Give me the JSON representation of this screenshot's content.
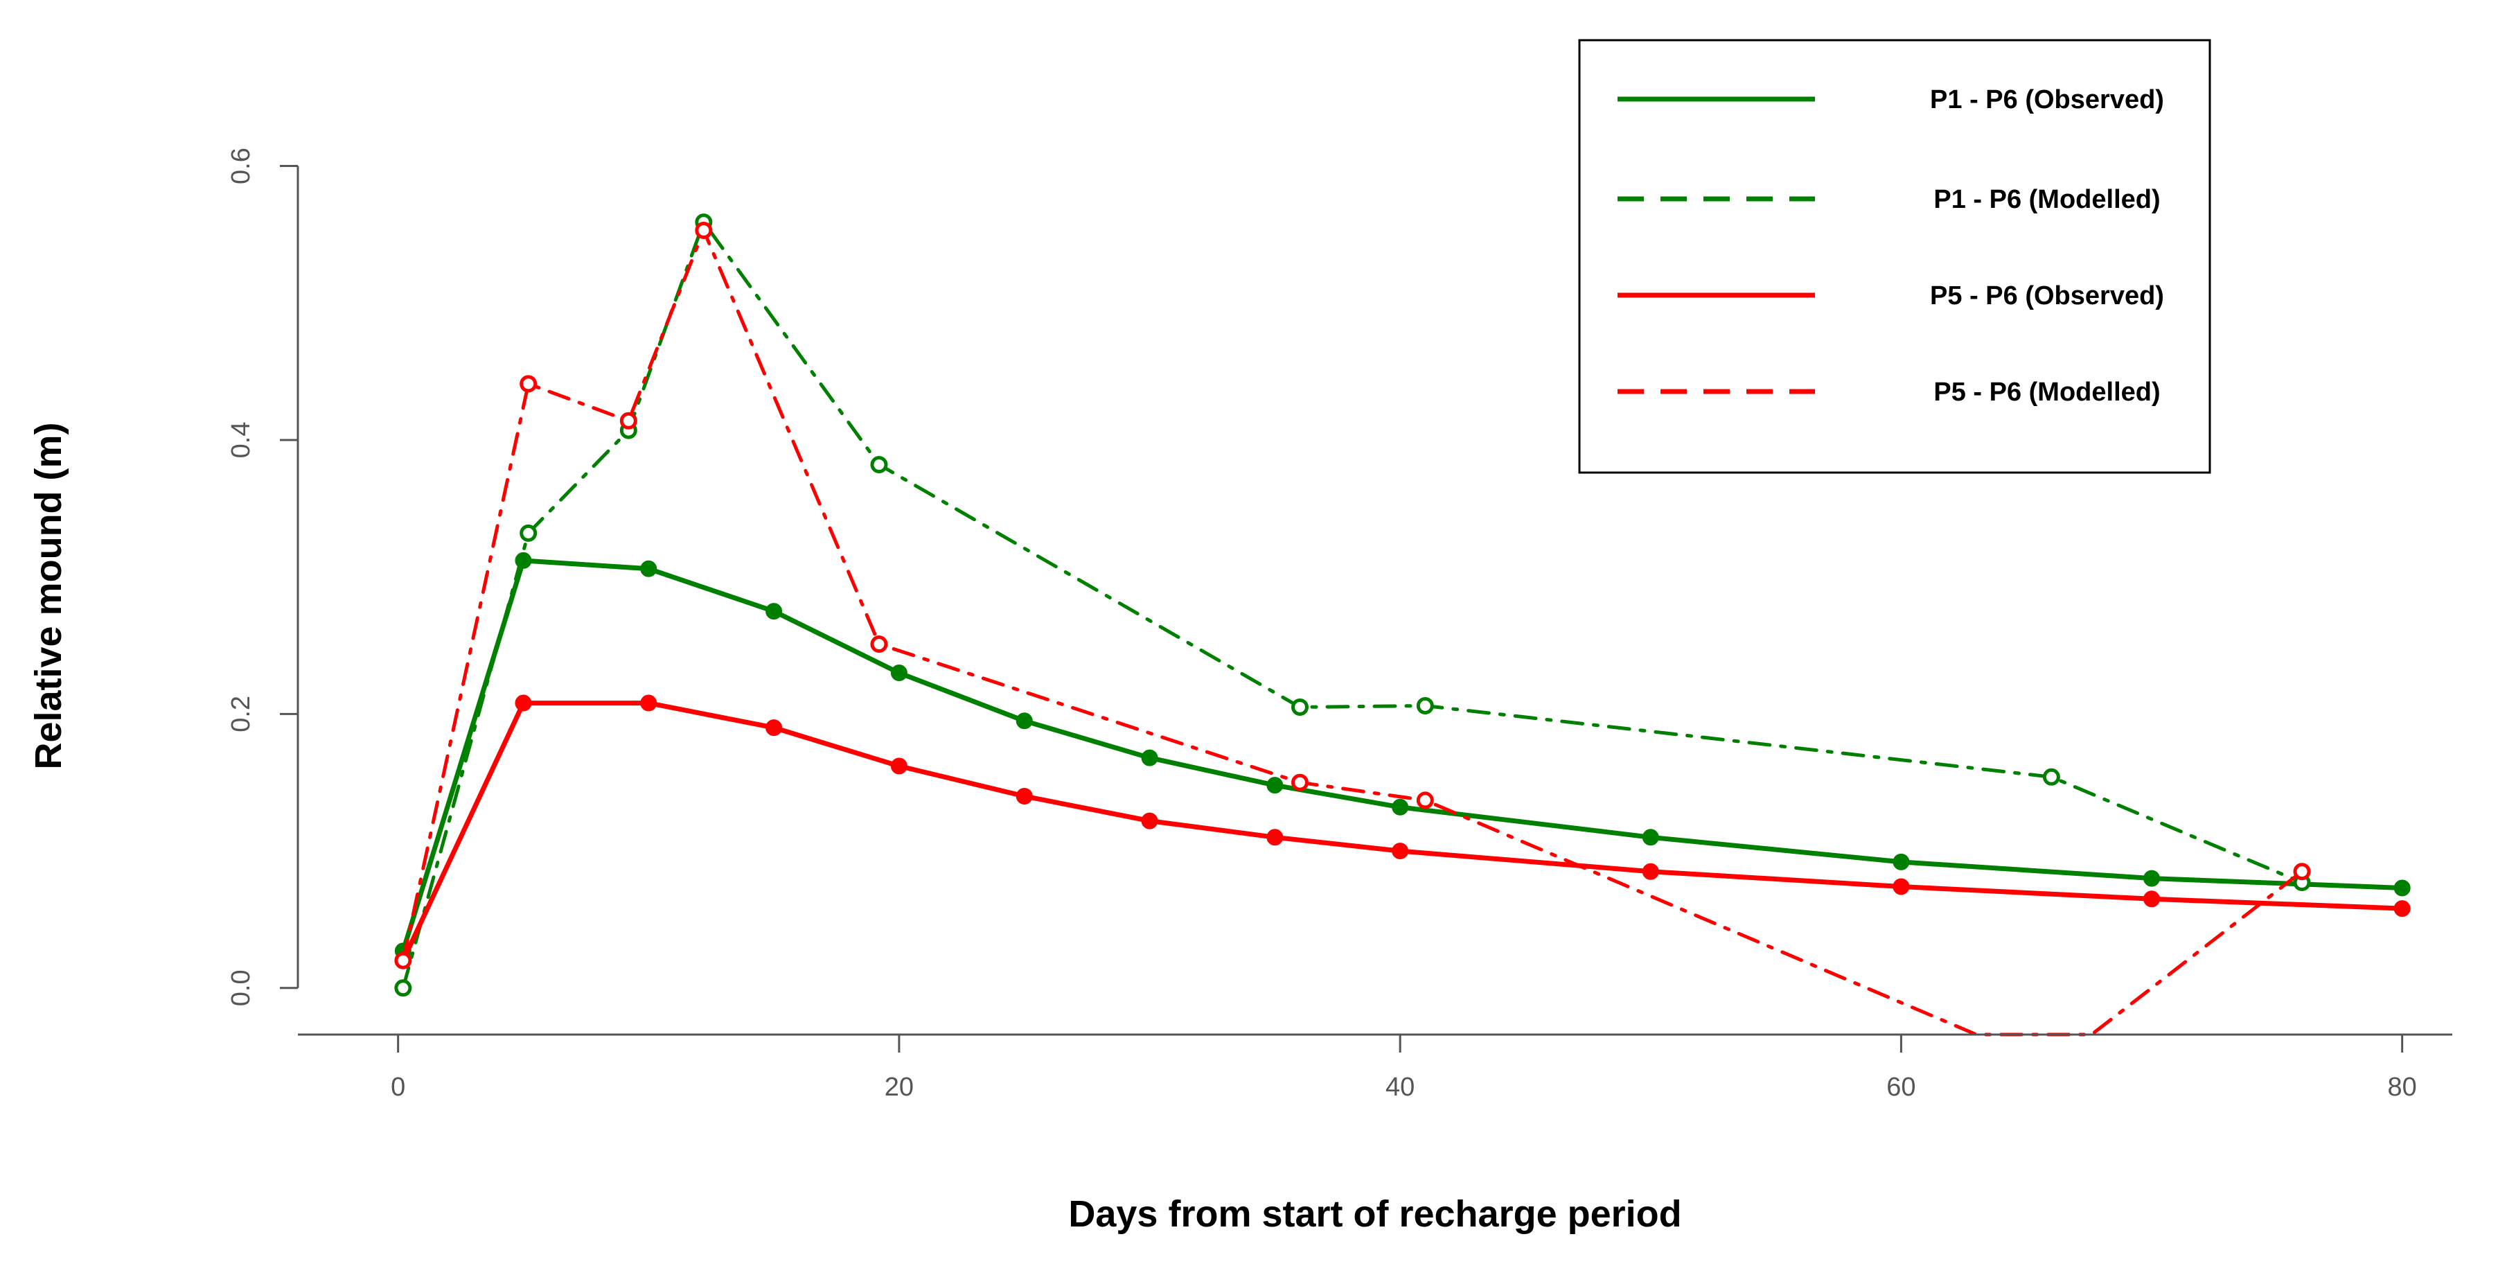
{
  "chart_data": {
    "type": "line",
    "title": "",
    "xlabel": "Days from start of recharge period",
    "ylabel": "Relative mound (m)",
    "xlim": [
      -4,
      82
    ],
    "ylim": [
      -0.034,
      0.62
    ],
    "x_ticks": [
      0,
      20,
      40,
      60,
      80
    ],
    "x_tick_labels": [
      "0",
      "20",
      "40",
      "60",
      "80"
    ],
    "y_ticks": [
      0.0,
      0.2,
      0.4,
      0.6
    ],
    "y_tick_labels": [
      "0.0",
      "0.2",
      "0.4",
      "0.6"
    ],
    "grid": false,
    "legend_position": "top-right",
    "series": [
      {
        "name": "P1 - P6 (Observed)",
        "color": "#008000",
        "style": "solid",
        "marker": "filled",
        "x": [
          0.2,
          5,
          10,
          15,
          20,
          25,
          30,
          35,
          40,
          50,
          60,
          70,
          80
        ],
        "y": [
          0.027,
          0.312,
          0.306,
          0.275,
          0.23,
          0.195,
          0.168,
          0.148,
          0.132,
          0.11,
          0.092,
          0.08,
          0.073
        ]
      },
      {
        "name": "P1 - P6 (Modelled)",
        "color": "#008000",
        "style": "dashdot",
        "marker": "open",
        "x": [
          0.2,
          5.2,
          9.2,
          12.2,
          19.2,
          36,
          41,
          66,
          76
        ],
        "y": [
          0.0,
          0.332,
          0.407,
          0.559,
          0.382,
          0.205,
          0.206,
          0.154,
          0.077
        ]
      },
      {
        "name": "P5 - P6 (Observed)",
        "color": "#ff0000",
        "style": "solid",
        "marker": "filled",
        "x": [
          0.2,
          5,
          10,
          15,
          20,
          25,
          30,
          35,
          40,
          50,
          60,
          70,
          80
        ],
        "y": [
          0.02,
          0.208,
          0.208,
          0.19,
          0.162,
          0.14,
          0.122,
          0.11,
          0.1,
          0.085,
          0.074,
          0.065,
          0.058
        ]
      },
      {
        "name": "P5 - P6 (Modelled)",
        "color": "#ff0000",
        "style": "dashdot",
        "marker": "open",
        "x": [
          0.2,
          5.2,
          9.2,
          12.2,
          19.2,
          36,
          41,
          63,
          67.6,
          76
        ],
        "y": [
          0.02,
          0.441,
          0.414,
          0.553,
          0.251,
          0.15,
          0.137,
          -0.034,
          -0.034,
          0.085
        ],
        "markers_at": [
          0,
          1,
          2,
          3,
          4,
          5,
          6,
          9
        ]
      }
    ],
    "legend_entries": [
      {
        "label": "P1 - P6 (Observed)",
        "color": "#008000",
        "style": "solid"
      },
      {
        "label": "P1 - P6 (Modelled)",
        "color": "#008000",
        "style": "dashed"
      },
      {
        "label": "P5 - P6 (Observed)",
        "color": "#ff0000",
        "style": "solid"
      },
      {
        "label": "P5 - P6 (Modelled)",
        "color": "#ff0000",
        "style": "dashed"
      }
    ]
  }
}
